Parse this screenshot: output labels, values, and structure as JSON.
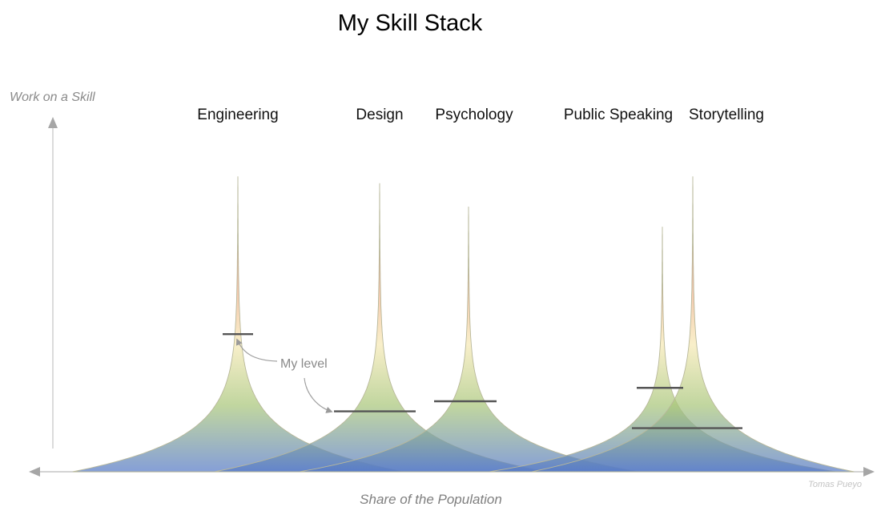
{
  "title": "My Skill Stack",
  "y_axis_label": "Work on a Skill",
  "x_axis_label": "Share of the Population",
  "credit": "Tomas Pueyo",
  "annotation": "My level",
  "colors": {
    "axis": "#a6a6a6",
    "curve_outline": "#b8b89a",
    "level_line": "#555555",
    "gradient_top": "#e8382b",
    "gradient_mid": "#f6e9b5",
    "gradient_green": "#a9c67a",
    "gradient_bottom": "#5579c9"
  },
  "skills": [
    {
      "name": "Engineering",
      "peak": 0.88,
      "my_level": 0.41
    },
    {
      "name": "Design",
      "peak": 0.86,
      "my_level": 0.18
    },
    {
      "name": "Psychology",
      "peak": 0.79,
      "my_level": 0.21
    },
    {
      "name": "Public Speaking",
      "peak": 0.73,
      "my_level": 0.25
    },
    {
      "name": "Storytelling",
      "peak": 0.88,
      "my_level": 0.13
    }
  ]
}
